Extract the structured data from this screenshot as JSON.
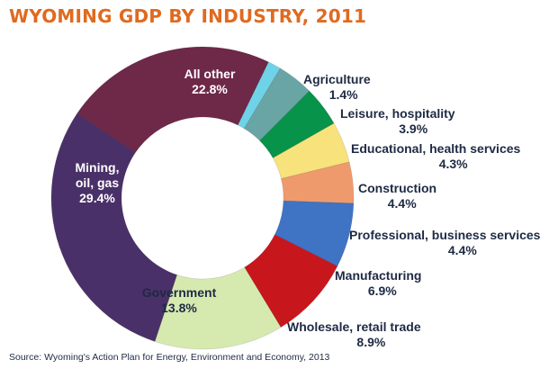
{
  "title": "WYOMING GDP BY INDUSTRY, 2011",
  "source": "Source: Wyoming's Action Plan for Energy, Environment and Economy, 2013",
  "chart_data": {
    "type": "pie",
    "style": "donut",
    "title": "WYOMING GDP BY INDUSTRY, 2011",
    "slices": [
      {
        "label": [
          "All other"
        ],
        "value": 22.8,
        "value_label": "22.8%",
        "color": "#6e2848",
        "text_color": "#ffffff"
      },
      {
        "label": [
          "Agriculture"
        ],
        "value": 1.4,
        "value_label": "1.4%",
        "color": "#6fd3e8",
        "text_color": "#1e2a44"
      },
      {
        "label": [
          "Leisure, hospitality"
        ],
        "value": 3.9,
        "value_label": "3.9%",
        "color": "#6aa5a5",
        "text_color": "#1e2a44"
      },
      {
        "label": [
          "Educational, health services"
        ],
        "value": 4.3,
        "value_label": "4.3%",
        "color": "#07934a",
        "text_color": "#1e2a44"
      },
      {
        "label": [
          "Construction"
        ],
        "value": 4.4,
        "value_label": "4.4%",
        "color": "#f7e27c",
        "text_color": "#1e2a44"
      },
      {
        "label": [
          "Professional, business services"
        ],
        "value": 4.4,
        "value_label": "4.4%",
        "color": "#ef9a6c",
        "text_color": "#1e2a44"
      },
      {
        "label": [
          "Manufacturing"
        ],
        "value": 6.9,
        "value_label": "6.9%",
        "color": "#3f73c4",
        "text_color": "#1e2a44"
      },
      {
        "label": [
          "Wholesale, retail trade"
        ],
        "value": 8.9,
        "value_label": "8.9%",
        "color": "#c8161d",
        "text_color": "#1e2a44"
      },
      {
        "label": [
          "Government"
        ],
        "value": 13.8,
        "value_label": "13.8%",
        "color": "#d6eab0",
        "text_color": "#1e2a44"
      },
      {
        "label": [
          "Mining,",
          "oil, gas"
        ],
        "value": 29.4,
        "value_label": "29.4%",
        "color": "#4a3068",
        "text_color": "#ffffff"
      }
    ]
  }
}
